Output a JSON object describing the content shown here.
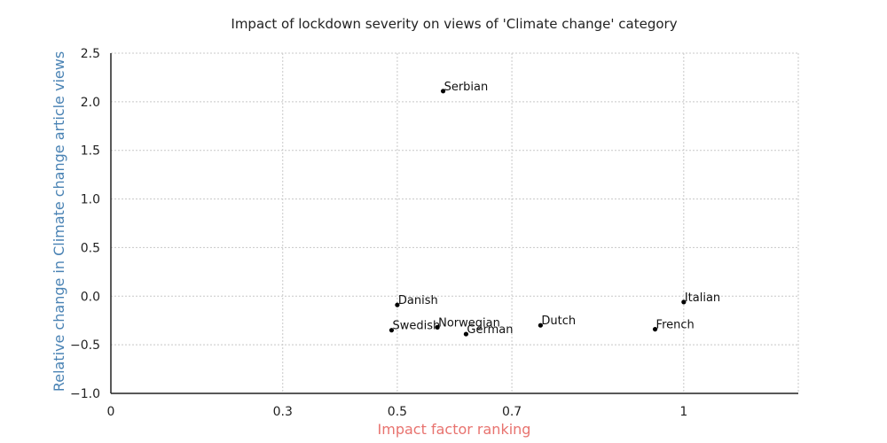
{
  "chart_data": {
    "type": "scatter",
    "title": "Impact of lockdown severity on views of 'Climate change' category",
    "xlabel": "Impact factor ranking",
    "ylabel": "Relative change in Climate change article views",
    "xlim": [
      0,
      1.2
    ],
    "ylim": [
      -1.0,
      2.5
    ],
    "xticks": [
      0,
      0.3,
      0.5,
      0.7,
      1
    ],
    "xtick_labels": [
      "0",
      "0.3",
      "0.5",
      "0.7",
      "1"
    ],
    "yticks": [
      -1.0,
      -0.5,
      0.0,
      0.5,
      1.0,
      1.5,
      2.0,
      2.5
    ],
    "ytick_labels": [
      "−1.0",
      "−0.5",
      "0.0",
      "0.5",
      "1.0",
      "1.5",
      "2.0",
      "2.5"
    ],
    "grid": true,
    "points": [
      {
        "label": "Serbian",
        "x": 0.58,
        "y": 2.11
      },
      {
        "label": "Danish",
        "x": 0.5,
        "y": -0.09
      },
      {
        "label": "Italian",
        "x": 1.0,
        "y": -0.06
      },
      {
        "label": "Swedish",
        "x": 0.49,
        "y": -0.35
      },
      {
        "label": "Norwegian",
        "x": 0.57,
        "y": -0.32
      },
      {
        "label": "German",
        "x": 0.62,
        "y": -0.39
      },
      {
        "label": "Dutch",
        "x": 0.75,
        "y": -0.3
      },
      {
        "label": "French",
        "x": 0.95,
        "y": -0.34
      }
    ],
    "colors": {
      "point": "#000000",
      "ylabel": "#4a83b4",
      "xlabel": "#e8736f",
      "grid": "#c8c8c8",
      "axis": "#222222"
    }
  }
}
